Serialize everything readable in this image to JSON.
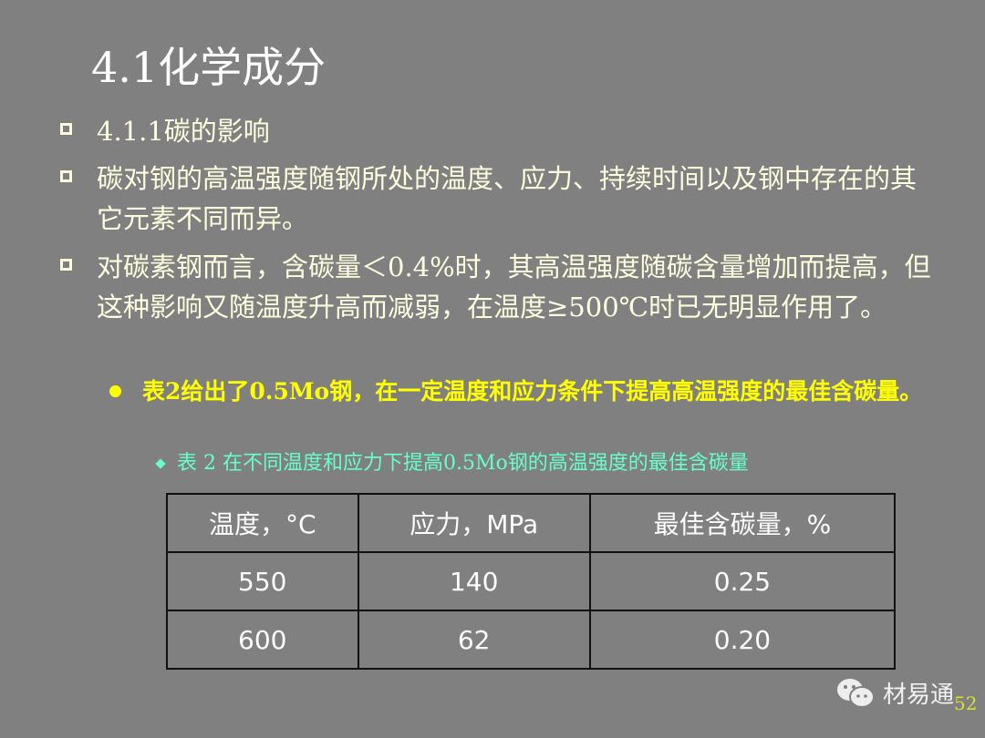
{
  "title": "4.1化学成分",
  "bullets": [
    "4.1.1碳的影响",
    "碳对钢的高温强度随钢所处的温度、应力、持续时间以及钢中存在的其它元素不同而异。",
    "对碳素钢而言，含碳量＜0.4%时，其高温强度随碳含量增加而提高，但这种影响又随温度升高而减弱，在温度≥500℃时已无明显作用了。"
  ],
  "sub_bullet": "表2给出了0.5Mo钢，在一定温度和应力条件下提高高温强度的最佳含碳量。",
  "caption": "表 2 在不同温度和应力下提高0.5Mo钢的高温强度的最佳含碳量",
  "table": {
    "headers": [
      "温度，°C",
      "应力，MPa",
      "最佳含碳量，%"
    ],
    "rows": [
      [
        "550",
        "140",
        "0.25"
      ],
      [
        "600",
        "62",
        "0.20"
      ]
    ]
  },
  "logo": {
    "icon": "wechat-icon",
    "text": "材易通"
  },
  "page_number": "52"
}
